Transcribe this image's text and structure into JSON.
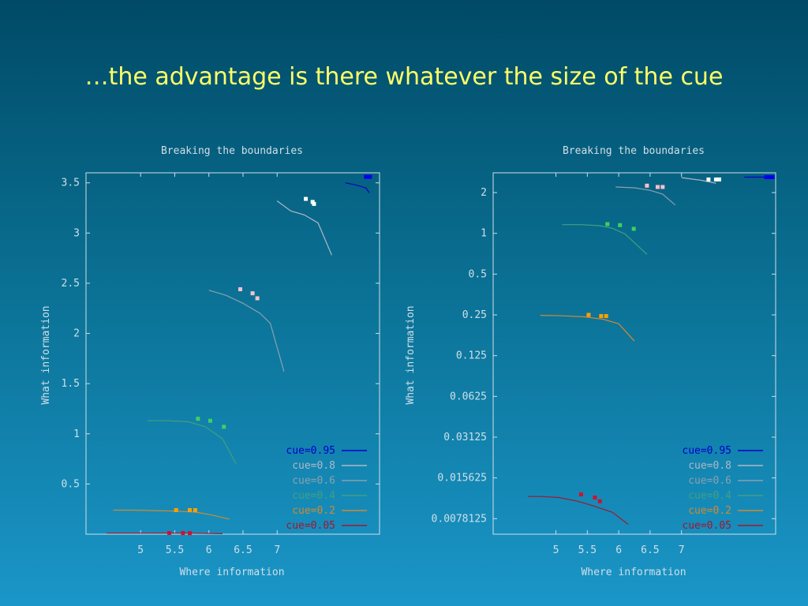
{
  "slide": {
    "title": "…the advantage is there whatever the size of the cue"
  },
  "colors": {
    "text": "#d0dfe8",
    "cue_0_95": "#0000cc",
    "cue_0_8": "#b0b8c8",
    "cue_0_6": "#8aa0b0",
    "cue_0_4": "#40a080",
    "cue_0_2": "#d08a30",
    "cue_0_05": "#a01830",
    "marker_0_95": "#0000ee",
    "marker_0_8": "#ffffff",
    "marker_0_6": "#ffc0cb",
    "marker_0_4": "#40d060",
    "marker_0_2": "#ffa000",
    "marker_0_05": "#d01030"
  },
  "chart_data": [
    {
      "type": "line",
      "title": "Breaking the boundaries",
      "xlabel": "Where information",
      "ylabel": "What information",
      "scale": "linear",
      "xlim": [
        4.2,
        8.5
      ],
      "ylim": [
        0,
        3.6
      ],
      "xticks": [
        "5",
        "5.5",
        "6",
        "6.5",
        "7"
      ],
      "yticks": [
        "0.5",
        "1",
        "1.5",
        "2",
        "2.5",
        "3",
        "3.5"
      ],
      "legend_position": "bottom-right",
      "series": [
        {
          "name": "cue=0.95",
          "color_key": "cue_0_95",
          "marker_color_key": "marker_0_95",
          "x": [
            8.0,
            8.15,
            8.3,
            8.35
          ],
          "y": [
            3.5,
            3.48,
            3.45,
            3.4
          ],
          "markers": {
            "x": [
              8.3,
              8.33,
              8.36
            ],
            "y": [
              3.56,
              3.56,
              3.56
            ]
          }
        },
        {
          "name": "cue=0.8",
          "color_key": "cue_0_8",
          "marker_color_key": "marker_0_8",
          "x": [
            7.0,
            7.2,
            7.4,
            7.6,
            7.8
          ],
          "y": [
            3.32,
            3.22,
            3.18,
            3.1,
            2.78
          ],
          "markers": {
            "x": [
              7.42,
              7.52,
              7.54
            ],
            "y": [
              3.34,
              3.31,
              3.29
            ]
          }
        },
        {
          "name": "cue=0.6",
          "color_key": "cue_0_6",
          "marker_color_key": "marker_0_6",
          "x": [
            6.0,
            6.25,
            6.5,
            6.75,
            6.9,
            7.1
          ],
          "y": [
            2.43,
            2.38,
            2.3,
            2.2,
            2.1,
            1.62
          ],
          "markers": {
            "x": [
              6.46,
              6.64,
              6.71
            ],
            "y": [
              2.44,
              2.4,
              2.35
            ]
          }
        },
        {
          "name": "cue=0.4",
          "color_key": "cue_0_4",
          "marker_color_key": "marker_0_4",
          "x": [
            5.1,
            5.4,
            5.7,
            5.95,
            6.2,
            6.4
          ],
          "y": [
            1.13,
            1.13,
            1.12,
            1.07,
            0.95,
            0.7
          ],
          "markers": {
            "x": [
              5.84,
              6.02,
              6.22
            ],
            "y": [
              1.15,
              1.13,
              1.07
            ]
          }
        },
        {
          "name": "cue=0.2",
          "color_key": "cue_0_2",
          "marker_color_key": "marker_0_2",
          "x": [
            4.6,
            4.9,
            5.2,
            5.5,
            5.8,
            6.05,
            6.3
          ],
          "y": [
            0.24,
            0.24,
            0.235,
            0.23,
            0.22,
            0.19,
            0.15
          ],
          "markers": {
            "x": [
              5.52,
              5.72,
              5.8
            ],
            "y": [
              0.24,
              0.24,
              0.24
            ]
          }
        },
        {
          "name": "cue=0.05",
          "color_key": "cue_0_05",
          "marker_color_key": "marker_0_05",
          "x": [
            4.5,
            5.0,
            5.5,
            5.9,
            6.2
          ],
          "y": [
            0.01,
            0.01,
            0.01,
            0.008,
            0.005
          ],
          "markers": {
            "x": [
              5.42,
              5.62,
              5.72
            ],
            "y": [
              0.012,
              0.011,
              0.01
            ]
          }
        }
      ]
    },
    {
      "type": "line",
      "title": "Breaking the boundaries",
      "xlabel": "Where information",
      "ylabel": "What information",
      "scale": "log2",
      "xlim": [
        4.0,
        8.5
      ],
      "ylim": [
        0.006,
        2.8
      ],
      "xticks": [
        "5",
        "5.5",
        "6",
        "6.5",
        "7"
      ],
      "yticks": [
        "0.0078125",
        "0.015625",
        "0.03125",
        "0.0625",
        "0.125",
        "0.25",
        "0.5",
        "1",
        "2"
      ],
      "legend_position": "bottom-right",
      "series": [
        {
          "name": "cue=0.95",
          "color_key": "cue_0_95",
          "marker_color_key": "marker_0_95",
          "x": [
            8.0,
            8.2,
            8.45
          ],
          "y": [
            2.6,
            2.6,
            2.6
          ],
          "markers": {
            "x": [
              8.35,
              8.4,
              8.45
            ],
            "y": [
              2.6,
              2.6,
              2.6
            ]
          }
        },
        {
          "name": "cue=0.8",
          "color_key": "cue_0_8",
          "marker_color_key": "marker_0_8",
          "x": [
            7.0,
            7.3,
            7.55
          ],
          "y": [
            2.58,
            2.47,
            2.35
          ],
          "markers": {
            "x": [
              7.43,
              7.55,
              7.6
            ],
            "y": [
              2.5,
              2.5,
              2.5
            ]
          }
        },
        {
          "name": "cue=0.6",
          "color_key": "cue_0_6",
          "marker_color_key": "marker_0_6",
          "x": [
            5.95,
            6.25,
            6.5,
            6.7,
            6.9
          ],
          "y": [
            2.2,
            2.17,
            2.08,
            1.95,
            1.62
          ],
          "markers": {
            "x": [
              6.45,
              6.62,
              6.7
            ],
            "y": [
              2.25,
              2.2,
              2.2
            ]
          }
        },
        {
          "name": "cue=0.4",
          "color_key": "cue_0_4",
          "marker_color_key": "marker_0_4",
          "x": [
            5.1,
            5.4,
            5.7,
            5.9,
            6.1,
            6.45
          ],
          "y": [
            1.16,
            1.16,
            1.14,
            1.09,
            0.99,
            0.7
          ],
          "markers": {
            "x": [
              5.82,
              6.02,
              6.24
            ],
            "y": [
              1.17,
              1.15,
              1.08
            ]
          }
        },
        {
          "name": "cue=0.2",
          "color_key": "cue_0_2",
          "marker_color_key": "marker_0_2",
          "x": [
            4.75,
            5.1,
            5.45,
            5.75,
            6.0,
            6.25
          ],
          "y": [
            0.248,
            0.246,
            0.242,
            0.232,
            0.215,
            0.16
          ],
          "markers": {
            "x": [
              5.52,
              5.72,
              5.8
            ],
            "y": [
              0.25,
              0.245,
              0.245
            ]
          }
        },
        {
          "name": "cue=0.05",
          "color_key": "cue_0_05",
          "marker_color_key": "marker_0_05",
          "x": [
            4.55,
            4.75,
            5.05,
            5.35,
            5.6,
            5.9,
            6.15
          ],
          "y": [
            0.0114,
            0.0114,
            0.0112,
            0.0105,
            0.0097,
            0.0087,
            0.0071
          ],
          "markers": {
            "x": [
              5.4,
              5.62,
              5.7
            ],
            "y": [
              0.0118,
              0.0112,
              0.0105
            ]
          }
        }
      ]
    }
  ]
}
